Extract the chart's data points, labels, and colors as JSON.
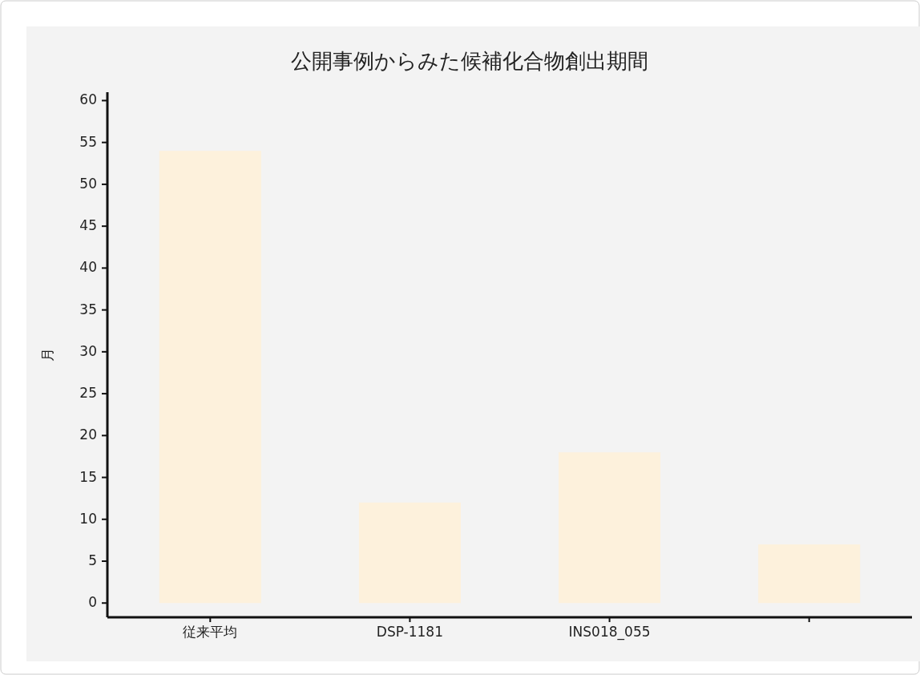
{
  "chart_data": {
    "type": "bar",
    "title": "公開事例からみた候補化合物創出期間",
    "ylabel": "月",
    "categories": [
      "従来平均",
      "DSP-1181",
      "INS018_055",
      null
    ],
    "values": [
      54,
      12,
      18,
      7
    ],
    "color": "#fdf1dc",
    "ylim": [
      -1.7,
      61
    ],
    "yticks": [
      0,
      5,
      10,
      15,
      20,
      25,
      30,
      35,
      40,
      45,
      50,
      55,
      60
    ],
    "grid": false
  }
}
